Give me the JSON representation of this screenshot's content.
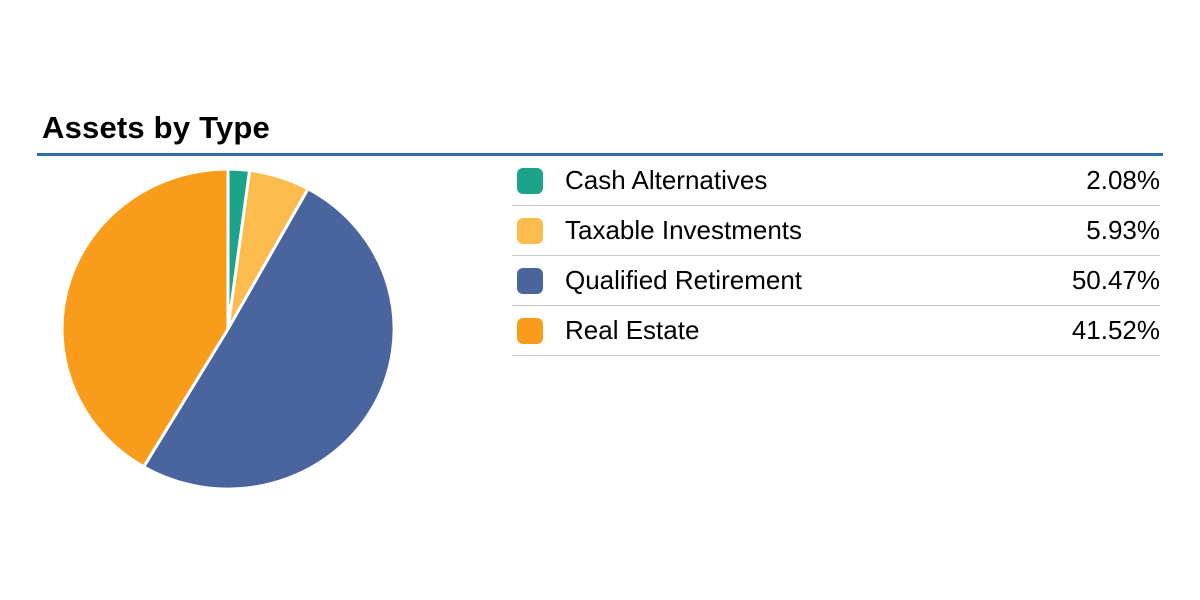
{
  "page": {
    "background": "#ffffff"
  },
  "header": {
    "title": "Assets by Type"
  },
  "colors": {
    "rule": "#2B6CA9",
    "divider": "#C9C9C9",
    "text": "#000000",
    "slice_gap": "#FFFFFF"
  },
  "chart_data": {
    "type": "pie",
    "title": "Assets by Type",
    "start_angle_deg": -90,
    "direction": "clockwise",
    "legend_position": "right",
    "series": [
      {
        "id": "cash-alternatives",
        "label": "Cash Alternatives",
        "value": 2.08,
        "display": "2.08%",
        "color": "#1CA48A"
      },
      {
        "id": "taxable-investments",
        "label": "Taxable Investments",
        "value": 5.93,
        "display": "5.93%",
        "color": "#FBBC4D"
      },
      {
        "id": "qualified-retirement",
        "label": "Qualified Retirement",
        "value": 50.47,
        "display": "50.47%",
        "color": "#4A659E"
      },
      {
        "id": "real-estate",
        "label": "Real Estate",
        "value": 41.52,
        "display": "41.52%",
        "color": "#F99C1B"
      }
    ]
  }
}
